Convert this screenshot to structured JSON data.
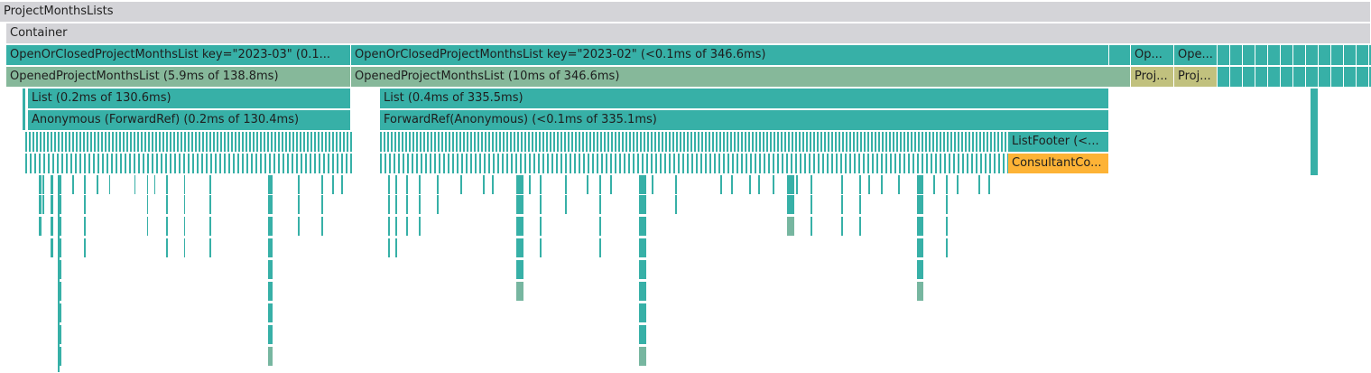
{
  "root": {
    "label": "ProjectMonthsLists"
  },
  "container": {
    "label": "Container"
  },
  "row2": {
    "left": "OpenOrClosedProjectMonthsList key=\"2023-03\" (0.1...",
    "mid": "OpenOrClosedProjectMonthsList key=\"2023-02\" (<0.1ms of 346.6ms)",
    "small1": "Op...",
    "small2": "Ope..."
  },
  "row3": {
    "left": "OpenedProjectMonthsList (5.9ms of 138.8ms)",
    "mid": "OpenedProjectMonthsList (10ms of 346.6ms)",
    "small1": "Proj...",
    "small2": "Proj..."
  },
  "row4": {
    "left": "List (0.2ms of 130.6ms)",
    "mid": "List (0.4ms of 335.5ms)"
  },
  "row5": {
    "left": "Anonymous (ForwardRef) (0.2ms of 130.4ms)",
    "mid": "ForwardRef(Anonymous) (<0.1ms of 335.1ms)"
  },
  "row6": {
    "footer": "ListFooter (<..."
  },
  "row7": {
    "consultant": "ConsultantCo..."
  },
  "colors": {
    "gray": "#d4d4d8",
    "teal": "#37b0a7",
    "sage": "#86b89a",
    "olive": "#c1c17e",
    "orange": "#fdb336"
  }
}
